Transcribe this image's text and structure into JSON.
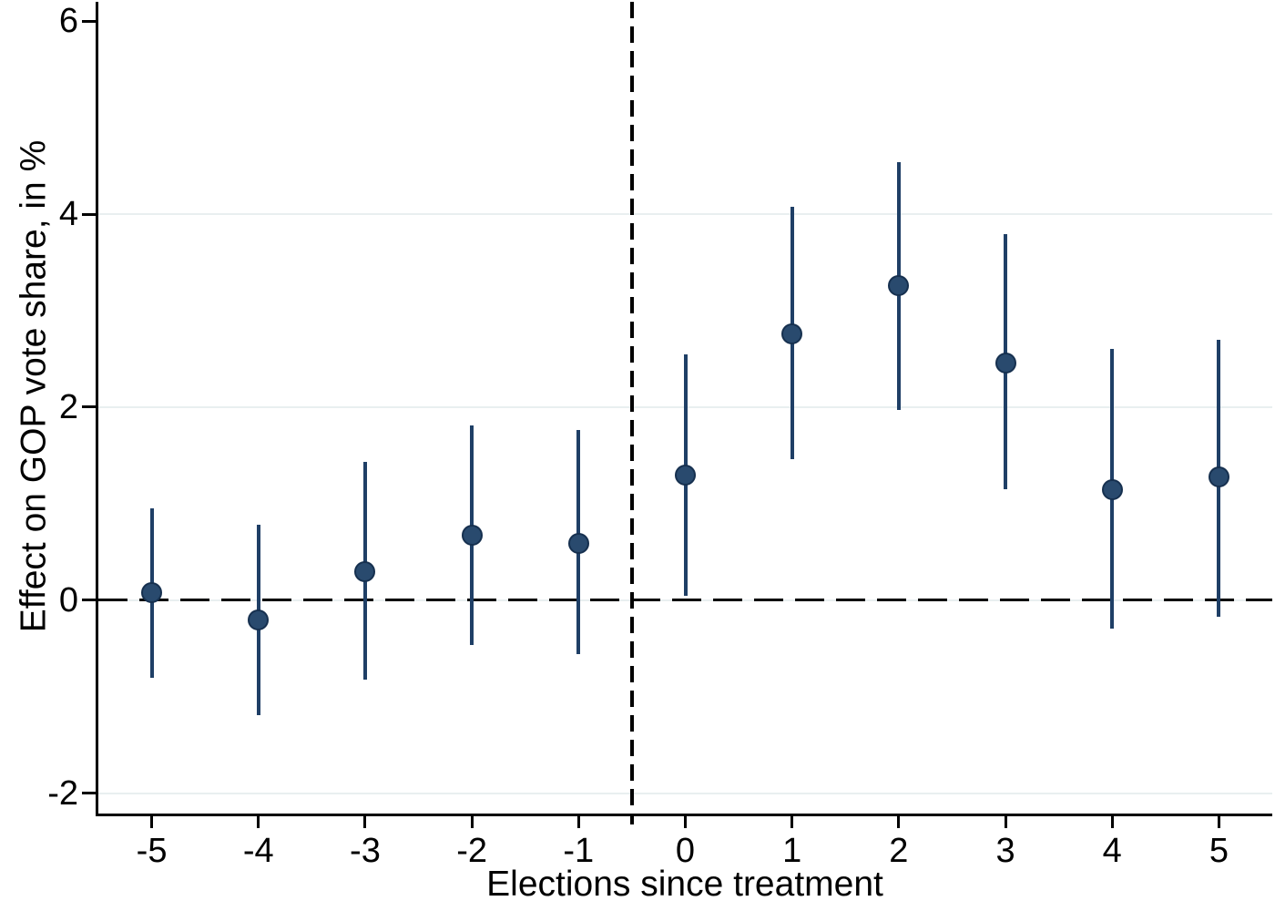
{
  "chart_data": {
    "type": "scatter",
    "subtype": "coefficient-plot-with-confidence-intervals",
    "title": "",
    "xlabel": "Elections since treatment",
    "ylabel": "Effect on GOP vote share, in %",
    "xlim": [
      -5.5,
      5.5
    ],
    "ylim": [
      -2.21,
      6.2
    ],
    "x_ticks": [
      -5,
      -4,
      -3,
      -2,
      -1,
      0,
      1,
      2,
      3,
      4,
      5
    ],
    "x_tick_labels": [
      "-5",
      "-4",
      "-3",
      "-2",
      "-1",
      "0",
      "1",
      "2",
      "3",
      "4",
      "5"
    ],
    "y_ticks": [
      -2,
      0,
      2,
      4,
      6
    ],
    "y_tick_labels": [
      "-2",
      "0",
      "2",
      "4",
      "6"
    ],
    "grid_y_values": [
      -2,
      0,
      2,
      4
    ],
    "legend": "none",
    "reference_lines": {
      "horizontal_dashed_y": 0,
      "vertical_dotted_x": -0.5
    },
    "series": [
      {
        "name": "estimated-effect",
        "points": [
          {
            "x": -5,
            "y": 0.08,
            "ci_low": -0.8,
            "ci_high": 0.95
          },
          {
            "x": -4,
            "y": -0.2,
            "ci_low": -1.19,
            "ci_high": 0.78
          },
          {
            "x": -3,
            "y": 0.3,
            "ci_low": -0.82,
            "ci_high": 1.43
          },
          {
            "x": -2,
            "y": 0.67,
            "ci_low": -0.46,
            "ci_high": 1.81
          },
          {
            "x": -1,
            "y": 0.59,
            "ci_low": -0.56,
            "ci_high": 1.76
          },
          {
            "x": 0,
            "y": 1.3,
            "ci_low": 0.05,
            "ci_high": 2.55
          },
          {
            "x": 1,
            "y": 2.76,
            "ci_low": 1.46,
            "ci_high": 4.08
          },
          {
            "x": 2,
            "y": 3.26,
            "ci_low": 1.97,
            "ci_high": 4.54
          },
          {
            "x": 3,
            "y": 2.46,
            "ci_low": 1.15,
            "ci_high": 3.79
          },
          {
            "x": 4,
            "y": 1.15,
            "ci_low": -0.29,
            "ci_high": 2.6
          },
          {
            "x": 5,
            "y": 1.28,
            "ci_low": -0.17,
            "ci_high": 2.7
          }
        ]
      }
    ],
    "colors": {
      "marker_fill": "#294a6e",
      "marker_border": "#16304f",
      "ci_line": "#1f3f66",
      "grid_line": "#e9eff0",
      "axis_line": "#000000",
      "reference_line": "#000000",
      "background": "#ffffff"
    }
  }
}
